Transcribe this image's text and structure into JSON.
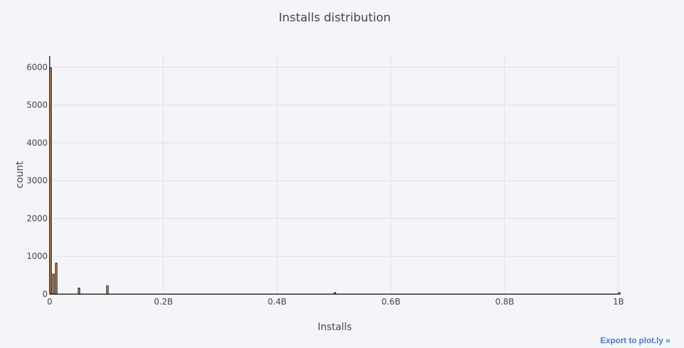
{
  "export_link": "Export to plot.ly »",
  "chart_data": {
    "type": "bar",
    "title": "Installs distribution",
    "xlabel": "Installs",
    "ylabel": "count",
    "xlim": [
      0,
      1000000000
    ],
    "ylim": [
      0,
      6300
    ],
    "x_ticks": [
      {
        "value": 0,
        "label": "0"
      },
      {
        "value": 200000000,
        "label": "0.2B"
      },
      {
        "value": 400000000,
        "label": "0.4B"
      },
      {
        "value": 600000000,
        "label": "0.6B"
      },
      {
        "value": 800000000,
        "label": "0.8B"
      },
      {
        "value": 1000000000,
        "label": "1B"
      }
    ],
    "y_ticks": [
      {
        "value": 0,
        "label": "0"
      },
      {
        "value": 1000,
        "label": "1000"
      },
      {
        "value": 2000,
        "label": "2000"
      },
      {
        "value": 3000,
        "label": "3000"
      },
      {
        "value": 4000,
        "label": "4000"
      },
      {
        "value": 5000,
        "label": "5000"
      },
      {
        "value": 6000,
        "label": "6000"
      }
    ],
    "grid": true,
    "colors": {
      "bar": "#cd8c54",
      "bar_outline": "#222222"
    },
    "bins": [
      {
        "x": 0,
        "count": 5990
      },
      {
        "x": 5000000,
        "count": 530
      },
      {
        "x": 10000000,
        "count": 820
      },
      {
        "x": 50000000,
        "count": 160
      },
      {
        "x": 100000000,
        "count": 220
      },
      {
        "x": 500000000,
        "count": 40
      },
      {
        "x": 1000000000,
        "count": 40
      }
    ],
    "bin_width": 2000000
  }
}
